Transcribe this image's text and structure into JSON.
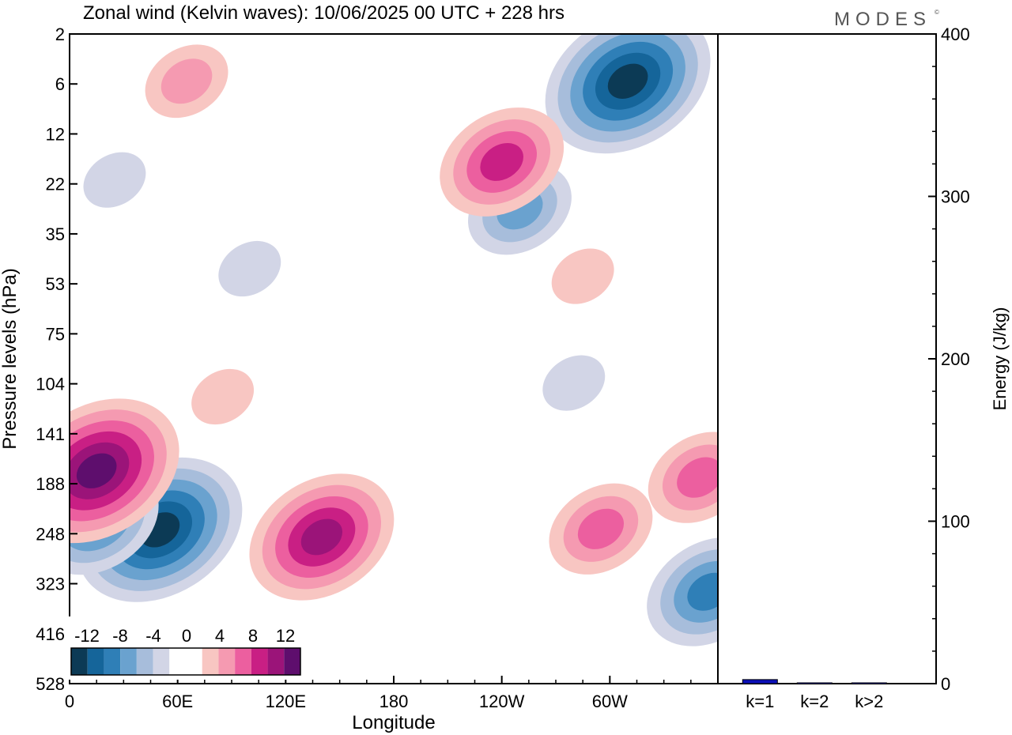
{
  "title": "Zonal wind (Kelvin waves):  10/06/2025  00 UTC  + 228 hrs",
  "brand": "MODES",
  "brand_mark": "©",
  "colors": {
    "neg_6": "#0c3a55",
    "neg_5": "#15659a",
    "neg_4": "#2f7fb7",
    "neg_3": "#6aa2cf",
    "neg_2": "#a7bddb",
    "neg_1": "#d2d5e6",
    "zero": "#ffffff",
    "pos_1": "#f8c6c2",
    "pos_2": "#f59ab1",
    "pos_3": "#ec5f9f",
    "pos_4": "#c91f84",
    "pos_5": "#9b1479",
    "pos_6": "#5e0e6d",
    "bar": "#0b10b8",
    "axis": "#000000"
  },
  "chart_data": [
    {
      "type": "heatmap",
      "title": "Zonal wind (Kelvin waves):  10/06/2025  00 UTC  + 228 hrs",
      "xlabel": "Longitude",
      "ylabel": "Pressure levels (hPa)",
      "x_ticks": [
        "0",
        "60E",
        "120E",
        "180",
        "120W",
        "60W"
      ],
      "x_tick_values": [
        0,
        60,
        120,
        180,
        240,
        300
      ],
      "x_range": [
        0,
        360
      ],
      "y_ticks": [
        "2",
        "6",
        "12",
        "22",
        "35",
        "53",
        "75",
        "104",
        "141",
        "188",
        "248",
        "323",
        "416",
        "528"
      ],
      "y_scale": "log",
      "colorbar": {
        "labels": [
          "-12",
          "-8",
          "-4",
          "0",
          "4",
          "8",
          "12"
        ],
        "levels": [
          -14,
          -12,
          -10,
          -8,
          -6,
          -4,
          -2,
          0,
          2,
          4,
          6,
          8,
          10,
          12,
          14
        ]
      },
      "features": [
        {
          "kind": "negative",
          "lon": 50,
          "p": 141,
          "peak": -14
        },
        {
          "kind": "negative",
          "lon": 15,
          "p": 130,
          "peak": -10
        },
        {
          "kind": "negative",
          "lon": 355,
          "p": 240,
          "peak": -10
        },
        {
          "kind": "negative",
          "lon": 310,
          "p": 3,
          "peak": -14
        },
        {
          "kind": "negative",
          "lon": 250,
          "p": 9,
          "peak": -8
        },
        {
          "kind": "negative",
          "lon": 280,
          "p": 40,
          "peak": -4
        },
        {
          "kind": "negative",
          "lon": 25,
          "p": 7,
          "peak": -4
        },
        {
          "kind": "negative",
          "lon": 100,
          "p": 15,
          "peak": -4
        },
        {
          "kind": "positive",
          "lon": 15,
          "p": 85,
          "peak": 14
        },
        {
          "kind": "positive",
          "lon": 140,
          "p": 150,
          "peak": 12
        },
        {
          "kind": "positive",
          "lon": 295,
          "p": 140,
          "peak": 8
        },
        {
          "kind": "positive",
          "lon": 350,
          "p": 90,
          "peak": 8
        },
        {
          "kind": "positive",
          "lon": 240,
          "p": 6,
          "peak": 10
        },
        {
          "kind": "positive",
          "lon": 85,
          "p": 45,
          "peak": 4
        },
        {
          "kind": "positive",
          "lon": 65,
          "p": 3,
          "peak": 6
        },
        {
          "kind": "positive",
          "lon": 285,
          "p": 16,
          "peak": 4
        }
      ]
    },
    {
      "type": "bar",
      "categories": [
        "k=1",
        "k=2",
        "k>2"
      ],
      "values": [
        2.5,
        0.5,
        0.5
      ],
      "ylabel": "Energy (J/kg)",
      "ylim": [
        0,
        400
      ],
      "y_ticks": [
        "0",
        "100",
        "200",
        "300",
        "400"
      ]
    }
  ]
}
